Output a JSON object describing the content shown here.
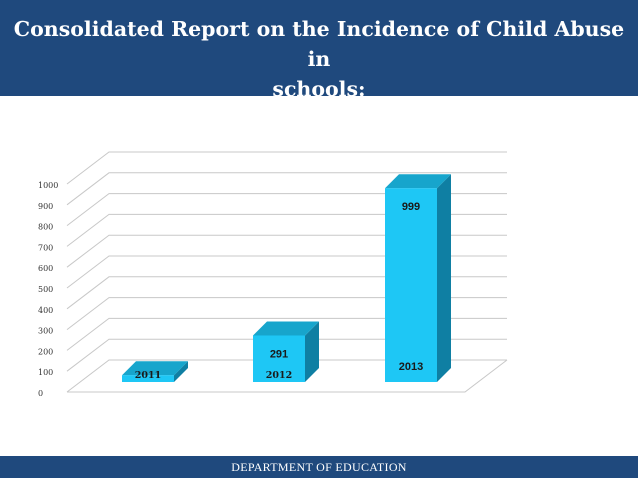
{
  "slide": {
    "title_line1": "Consolidated Report on the Incidence of Child Abuse in",
    "title_line2": "schools:",
    "footer": "DEPARTMENT OF EDUCATION"
  },
  "colors": {
    "header_bg": "#1f497d",
    "bar_front": "#1ec7f5",
    "bar_top": "#17a5cc",
    "bar_side": "#0f7fa3"
  },
  "chart_data": {
    "type": "bar",
    "title": "",
    "xlabel": "",
    "ylabel": "",
    "categories": [
      "2011",
      "2012",
      "2013"
    ],
    "values": [
      100,
      291,
      999
    ],
    "data_labels": [
      "",
      "291",
      "999"
    ],
    "ylim": [
      0,
      1000
    ],
    "yticks": [
      "0",
      "100",
      "200",
      "300",
      "400",
      "500",
      "600",
      "700",
      "800",
      "900",
      "1000"
    ],
    "grid": true,
    "three_d": true
  }
}
